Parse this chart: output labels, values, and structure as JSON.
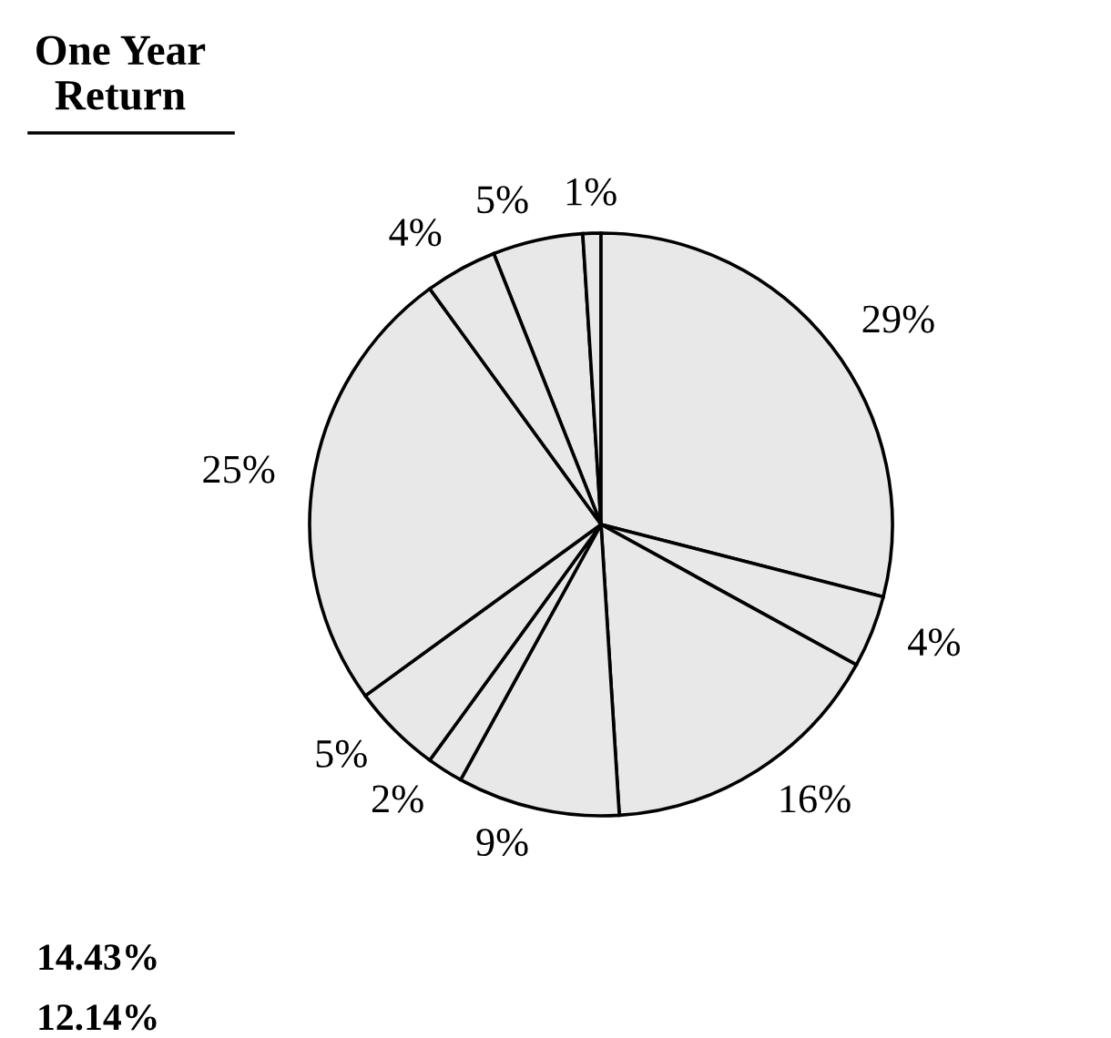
{
  "chart_data": {
    "type": "pie",
    "title": "One Year\nReturn",
    "categories": [
      null,
      null,
      null,
      null,
      null,
      null,
      null,
      null,
      null,
      null
    ],
    "values": [
      5,
      1,
      29,
      4,
      16,
      9,
      2,
      5,
      25,
      4
    ],
    "colors": [
      "#e8e8e8",
      "#e8e8e8",
      "#e8e8e8",
      "#e8e8e8",
      "#e8e8e8",
      "#e8e8e8",
      "#e8e8e8",
      "#e8e8e8",
      "#e8e8e8",
      "#e8e8e8"
    ],
    "value_labels": [
      "5%",
      "1%",
      "29%",
      "4%",
      "16%",
      "9%",
      "2%",
      "5%",
      "25%",
      "4%"
    ],
    "annotations": [
      "14.43%",
      "12.14%"
    ]
  }
}
